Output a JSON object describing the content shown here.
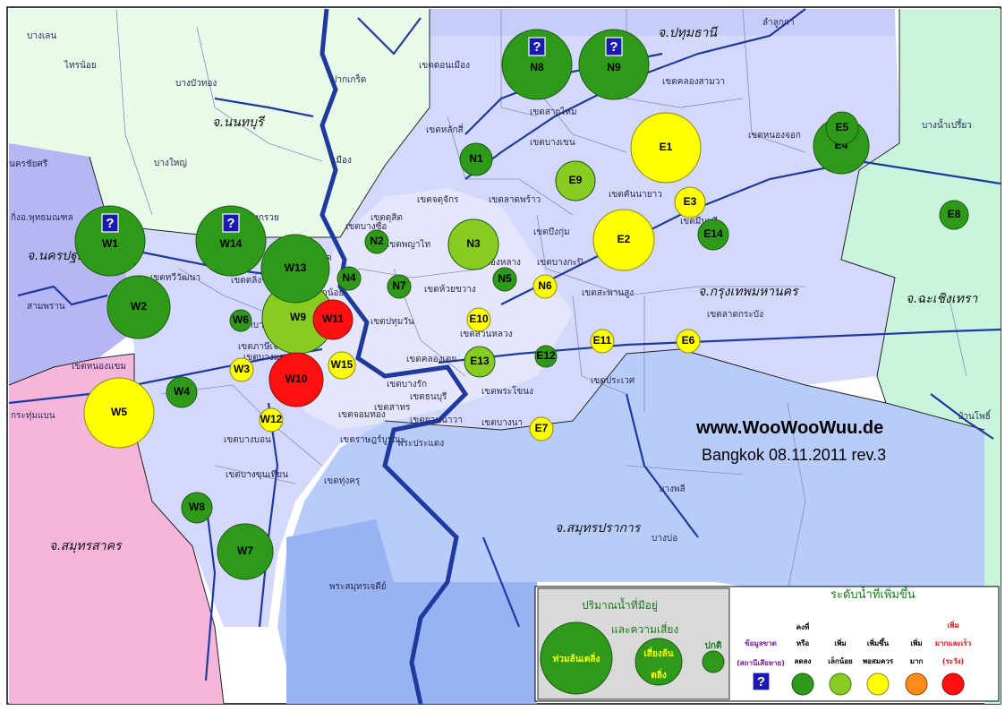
{
  "website": "www.WooWooWuu.de",
  "subtitle": "Bangkok 08.11.2011 rev.3",
  "colors": {
    "no_data": "#1a1ab0",
    "stable": "#2f9a1a",
    "slight": "#88cc22",
    "rising": "#ffff00",
    "high": "#ff8c1a",
    "critical": "#ff1010"
  },
  "provinces": {
    "pathum_thani": "จ.ปทุมธานี",
    "nonthaburi": "จ.นนทบุรี",
    "nakhon_pathom": "จ.นครปฐม",
    "bangkok": "จ.กรุงเทพมหานคร",
    "chachoengsao": "จ.ฉะเชิงเทรา",
    "samut_prakan": "จ.สมุทรปราการ",
    "samut_sakhon": "จ.สมุทรสาคร"
  },
  "district_labels": [
    "บางเลน",
    "ไทรน้อย",
    "บางบัวทอง",
    "ปากเกร็ด",
    "เมือง",
    "บางใหญ่",
    "นครชัยศรี",
    "กิ่งอ.พุทธมณฑล",
    "สามพราน",
    "บางกรวย",
    "ลำลูกกา",
    "เขตดอนเมือง",
    "เขตสายไหม",
    "เขตคลองสามวา",
    "เขตหนองจอก",
    "บางน้ำเปรี้ยว",
    "เขตหลักสี่",
    "เขตบางเขน",
    "เขตคันนายาว",
    "เขตจตุจักร",
    "เขตลาดพร้าว",
    "เขตบึงกุ่ม",
    "เขตมีนบุรี",
    "เขตทวีวัฒนา",
    "เขตตลิ่งชัน",
    "เขตบางพลัด",
    "เขตพญาไท",
    "เขตห้วยขวาง",
    "เขตวังทองหลาง",
    "เขตบางกะปิ",
    "เขตสะพานสูง",
    "เขตลาดกระบัง",
    "เขตบางกอกน้อย",
    "เขตบางกอกใหญ่",
    "เขตบางแค",
    "เขตภาษีเจริญ",
    "เขตหนองแขม",
    "เขตปทุมวัน",
    "เขตสวนหลวง",
    "เขตคลองเตย",
    "เขตประเวศ",
    "เขตบางนา",
    "เขตพระโขนง",
    "เขตราษฎร์บูรณะ",
    "เขตบางบอน",
    "เขตบางขุนเทียน",
    "เขตทุ่งครุ",
    "เขตธนบุรี",
    "เขตจอมทอง",
    "เขตบางซื่อ",
    "เขตดุสิต",
    "เขตบางรัก",
    "เขตสาทร",
    "เขตยานนาวา",
    "บางพลี",
    "บางบ่อ",
    "พระสมุทรเจดีย์",
    "บ้านโพธิ์",
    "กระทุ่มแบน",
    "พระประแดง"
  ],
  "stations": [
    {
      "id": "N8",
      "level": "stable",
      "size": "large",
      "nodata": true
    },
    {
      "id": "N9",
      "level": "stable",
      "size": "large",
      "nodata": true
    },
    {
      "id": "N1",
      "level": "stable",
      "size": "small"
    },
    {
      "id": "N2",
      "level": "stable",
      "size": "small"
    },
    {
      "id": "N3",
      "level": "slight",
      "size": "medium"
    },
    {
      "id": "N4",
      "level": "stable",
      "size": "small"
    },
    {
      "id": "N5",
      "level": "stable",
      "size": "small"
    },
    {
      "id": "N6",
      "level": "rising",
      "size": "tiny"
    },
    {
      "id": "N7",
      "level": "stable",
      "size": "small"
    },
    {
      "id": "E1",
      "level": "rising",
      "size": "large"
    },
    {
      "id": "E2",
      "level": "rising",
      "size": "medium"
    },
    {
      "id": "E3",
      "level": "rising",
      "size": "small"
    },
    {
      "id": "E4",
      "level": "stable",
      "size": "medium"
    },
    {
      "id": "E5",
      "level": "stable",
      "size": "small"
    },
    {
      "id": "E6",
      "level": "rising",
      "size": "tiny"
    },
    {
      "id": "E7",
      "level": "rising",
      "size": "tiny"
    },
    {
      "id": "E8",
      "level": "stable",
      "size": "small"
    },
    {
      "id": "E9",
      "level": "slight",
      "size": "small"
    },
    {
      "id": "E10",
      "level": "rising",
      "size": "tiny"
    },
    {
      "id": "E11",
      "level": "rising",
      "size": "tiny"
    },
    {
      "id": "E12",
      "level": "stable",
      "size": "tiny"
    },
    {
      "id": "E13",
      "level": "slight",
      "size": "small"
    },
    {
      "id": "E14",
      "level": "stable",
      "size": "small"
    },
    {
      "id": "W1",
      "level": "stable",
      "size": "large",
      "nodata": true
    },
    {
      "id": "W2",
      "level": "stable",
      "size": "medium"
    },
    {
      "id": "W3",
      "level": "rising",
      "size": "tiny"
    },
    {
      "id": "W4",
      "level": "stable",
      "size": "small"
    },
    {
      "id": "W5",
      "level": "rising",
      "size": "large"
    },
    {
      "id": "W6",
      "level": "stable",
      "size": "tiny"
    },
    {
      "id": "W7",
      "level": "stable",
      "size": "medium"
    },
    {
      "id": "W8",
      "level": "stable",
      "size": "small"
    },
    {
      "id": "W9",
      "level": "slight",
      "size": "large"
    },
    {
      "id": "W10",
      "level": "critical",
      "size": "medium"
    },
    {
      "id": "W11",
      "level": "critical",
      "size": "small"
    },
    {
      "id": "W12",
      "level": "rising",
      "size": "tiny"
    },
    {
      "id": "W13",
      "level": "stable",
      "size": "large"
    },
    {
      "id": "W14",
      "level": "stable",
      "size": "large",
      "nodata": true
    },
    {
      "id": "W15",
      "level": "rising",
      "size": "small"
    }
  ],
  "legend": {
    "amount_title_1": "ปริมาณน้ำที่มีอยู่",
    "amount_title_2": "และความเสี่ยง",
    "large_label": "ท่วมล้นเตลิ่ง",
    "medium_label_1": "เสี่ยงล้น",
    "medium_label_2": "ตลิ่ง",
    "small_label": "ปกติ",
    "rise_title": "ระดับน้ำที่เพิ่มขึ้น",
    "nodata_1": "ข้อมูลขาด",
    "nodata_2": "(สถานีเสียหาย)",
    "stable_1": "คงที่",
    "stable_2": "หรือ",
    "stable_3": "ลดลง",
    "slight_1": "เพิ่ม",
    "slight_2": "เล็กน้อย",
    "rising_1": "เพิ่มขึ้น",
    "rising_2": "พอสมควร",
    "high_1": "เพิ่ม",
    "high_2": "มาก",
    "critical_1": "เพิ่ม",
    "critical_2": "มากและเร็ว",
    "critical_3": "(ระวัง)",
    "question_mark": "?"
  }
}
